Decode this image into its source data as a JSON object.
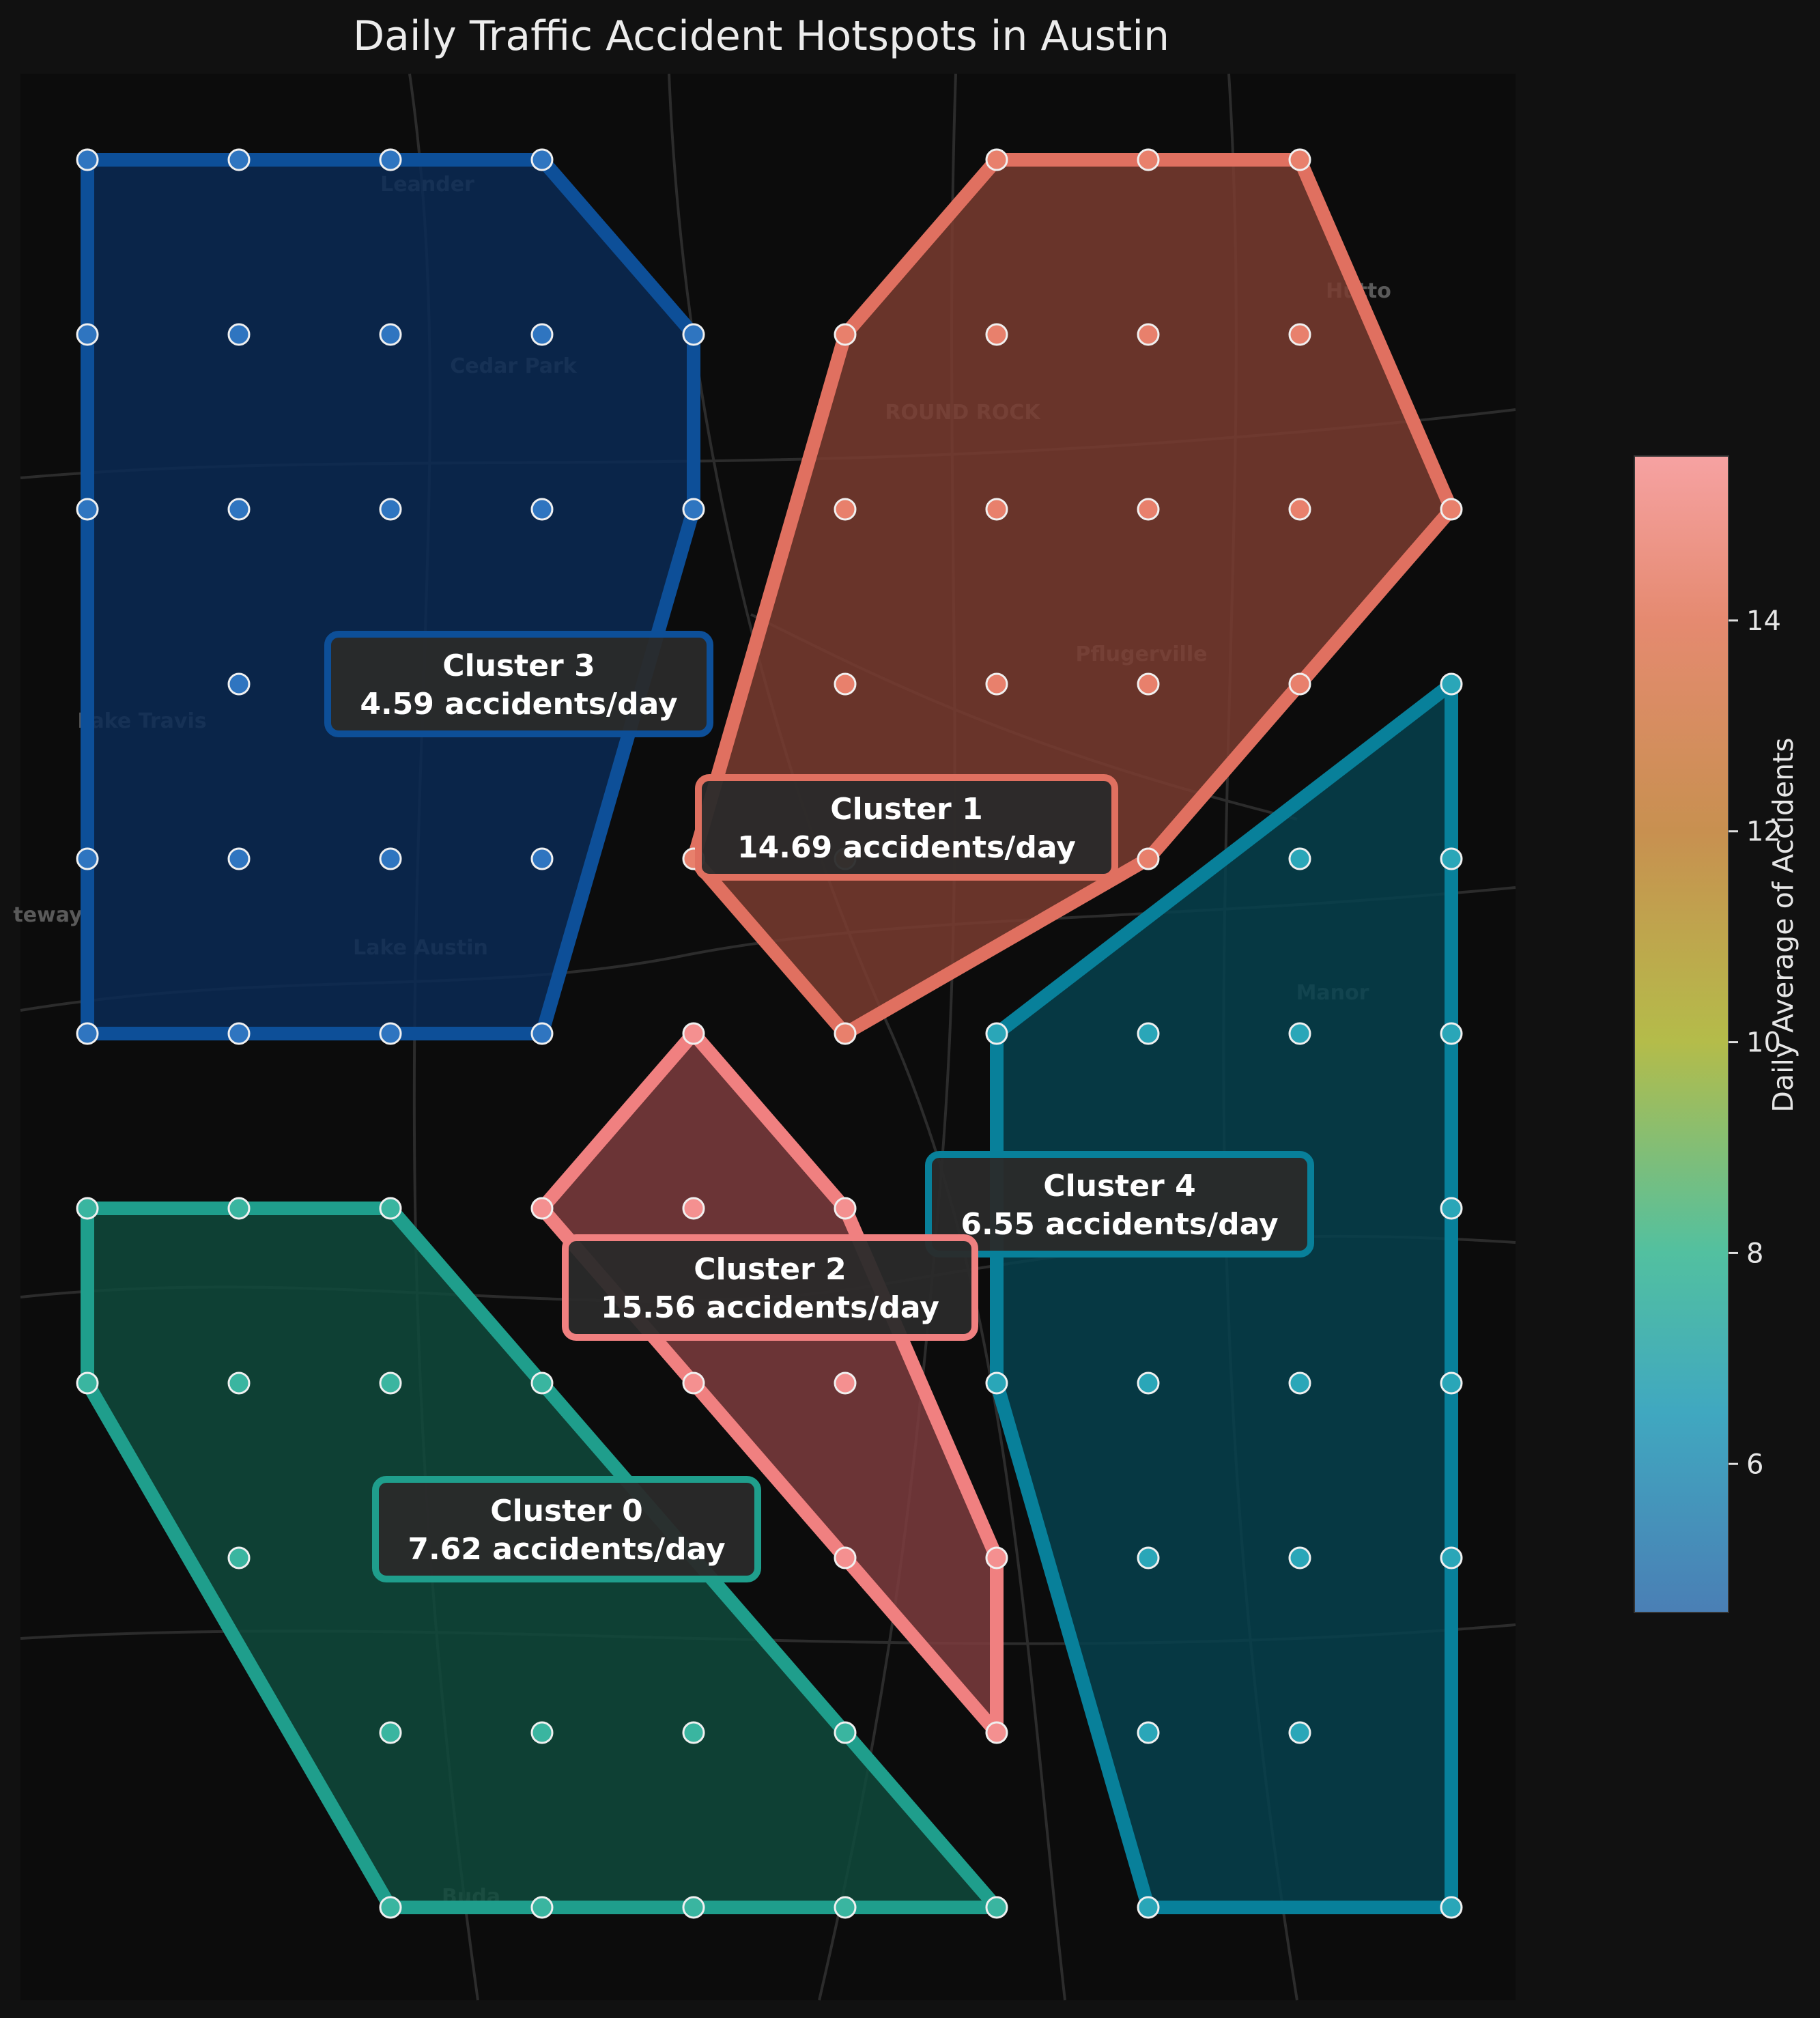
{
  "title": "Daily Traffic Accident Hotspots in Austin",
  "map_labels": [
    {
      "name": "leander",
      "text": "Leander"
    },
    {
      "name": "cedar-park",
      "text": "Cedar Park"
    },
    {
      "name": "round-rock",
      "text": "ROUND ROCK"
    },
    {
      "name": "hutto",
      "text": "Hutto"
    },
    {
      "name": "pflugerville",
      "text": "Pflugerville"
    },
    {
      "name": "lake-travis",
      "text": "Lake Travis"
    },
    {
      "name": "lake-austin",
      "text": "Lake Austin"
    },
    {
      "name": "manor",
      "text": "Manor"
    },
    {
      "name": "buda",
      "text": "Buda"
    },
    {
      "name": "gateway",
      "text": "teway"
    }
  ],
  "colorbar": {
    "label": "Daily Average of Accidents",
    "min": 4.59,
    "max": 15.56,
    "ticks": [
      6,
      8,
      10,
      12,
      14
    ],
    "stops": [
      {
        "v": 4.59,
        "color": "#4a7fb5"
      },
      {
        "v": 6.5,
        "color": "#40a8c0"
      },
      {
        "v": 8.0,
        "color": "#52c0a0"
      },
      {
        "v": 10.0,
        "color": "#b4bc4a"
      },
      {
        "v": 12.0,
        "color": "#c89050"
      },
      {
        "v": 14.0,
        "color": "#e58a70"
      },
      {
        "v": 15.56,
        "color": "#f6a2a2"
      }
    ]
  },
  "chart_data": {
    "type": "map",
    "grid": {
      "rows": 11,
      "cols": 10
    },
    "clusters": [
      {
        "id": 0,
        "label": "Cluster 0",
        "value_text": "7.62 accidents/day",
        "value": 7.62,
        "color": "#1f9e8c",
        "fill": "#0f4a3c",
        "point_color": "#3ab5a0",
        "hull": [
          [
            0,
            6
          ],
          [
            0,
            7
          ],
          [
            2,
            10
          ],
          [
            6,
            10
          ],
          [
            2,
            6
          ]
        ],
        "points": [
          [
            0,
            6
          ],
          [
            1,
            6
          ],
          [
            2,
            6
          ],
          [
            0,
            7
          ],
          [
            1,
            7
          ],
          [
            2,
            7
          ],
          [
            3,
            7
          ],
          [
            1,
            8
          ],
          [
            2,
            9
          ],
          [
            3,
            9
          ],
          [
            4,
            9
          ],
          [
            5,
            9
          ],
          [
            2,
            10
          ],
          [
            3,
            10
          ],
          [
            4,
            10
          ],
          [
            5,
            10
          ],
          [
            6,
            10
          ]
        ]
      },
      {
        "id": 1,
        "label": "Cluster 1",
        "value_text": "14.69 accidents/day",
        "value": 14.69,
        "color": "#e07060",
        "fill": "#7a3c30",
        "point_color": "#e8806c",
        "hull": [
          [
            6,
            0
          ],
          [
            8,
            0
          ],
          [
            9,
            2
          ],
          [
            7,
            4
          ],
          [
            5,
            5
          ],
          [
            4,
            4
          ],
          [
            5,
            1
          ]
        ],
        "points": [
          [
            6,
            0
          ],
          [
            7,
            0
          ],
          [
            8,
            0
          ],
          [
            5,
            1
          ],
          [
            6,
            1
          ],
          [
            7,
            1
          ],
          [
            8,
            1
          ],
          [
            5,
            2
          ],
          [
            6,
            2
          ],
          [
            7,
            2
          ],
          [
            8,
            2
          ],
          [
            9,
            2
          ],
          [
            5,
            3
          ],
          [
            6,
            3
          ],
          [
            7,
            3
          ],
          [
            8,
            3
          ],
          [
            4,
            4
          ],
          [
            5,
            4
          ],
          [
            7,
            4
          ],
          [
            5,
            5
          ]
        ]
      },
      {
        "id": 2,
        "label": "Cluster 2",
        "value_text": "15.56 accidents/day",
        "value": 15.56,
        "color": "#f08080",
        "fill": "#7c3c3e",
        "point_color": "#f49090",
        "hull": [
          [
            4,
            5
          ],
          [
            5,
            6
          ],
          [
            6,
            8
          ],
          [
            6,
            9
          ],
          [
            3,
            6
          ]
        ],
        "points": [
          [
            4,
            5
          ],
          [
            3,
            6
          ],
          [
            4,
            6
          ],
          [
            5,
            6
          ],
          [
            4,
            7
          ],
          [
            5,
            7
          ],
          [
            5,
            8
          ],
          [
            6,
            8
          ],
          [
            6,
            9
          ]
        ]
      },
      {
        "id": 3,
        "label": "Cluster 3",
        "value_text": "4.59 accidents/day",
        "value": 4.59,
        "color": "#0d4f98",
        "fill": "#0a2a55",
        "point_color": "#2f75c0",
        "hull": [
          [
            0,
            0
          ],
          [
            3,
            0
          ],
          [
            4,
            1
          ],
          [
            4,
            2
          ],
          [
            3,
            5
          ],
          [
            0,
            5
          ]
        ],
        "points": [
          [
            0,
            0
          ],
          [
            1,
            0
          ],
          [
            2,
            0
          ],
          [
            3,
            0
          ],
          [
            0,
            1
          ],
          [
            1,
            1
          ],
          [
            2,
            1
          ],
          [
            3,
            1
          ],
          [
            4,
            1
          ],
          [
            0,
            2
          ],
          [
            1,
            2
          ],
          [
            2,
            2
          ],
          [
            3,
            2
          ],
          [
            4,
            2
          ],
          [
            1,
            3
          ],
          [
            0,
            4
          ],
          [
            1,
            4
          ],
          [
            2,
            4
          ],
          [
            3,
            4
          ],
          [
            0,
            5
          ],
          [
            1,
            5
          ],
          [
            2,
            5
          ],
          [
            3,
            5
          ]
        ]
      },
      {
        "id": 4,
        "label": "Cluster 4",
        "value_text": "6.55 accidents/day",
        "value": 6.55,
        "color": "#08809a",
        "fill": "#06414e",
        "point_color": "#2aa6b8",
        "hull": [
          [
            9,
            3
          ],
          [
            9,
            10
          ],
          [
            7,
            10
          ],
          [
            6,
            7
          ],
          [
            6,
            5
          ]
        ],
        "points": [
          [
            9,
            3
          ],
          [
            8,
            4
          ],
          [
            9,
            4
          ],
          [
            6,
            5
          ],
          [
            7,
            5
          ],
          [
            8,
            5
          ],
          [
            9,
            5
          ],
          [
            9,
            6
          ],
          [
            6,
            7
          ],
          [
            7,
            7
          ],
          [
            8,
            7
          ],
          [
            9,
            7
          ],
          [
            7,
            8
          ],
          [
            8,
            8
          ],
          [
            9,
            8
          ],
          [
            7,
            9
          ],
          [
            8,
            9
          ],
          [
            7,
            10
          ],
          [
            9,
            10
          ]
        ]
      }
    ]
  }
}
